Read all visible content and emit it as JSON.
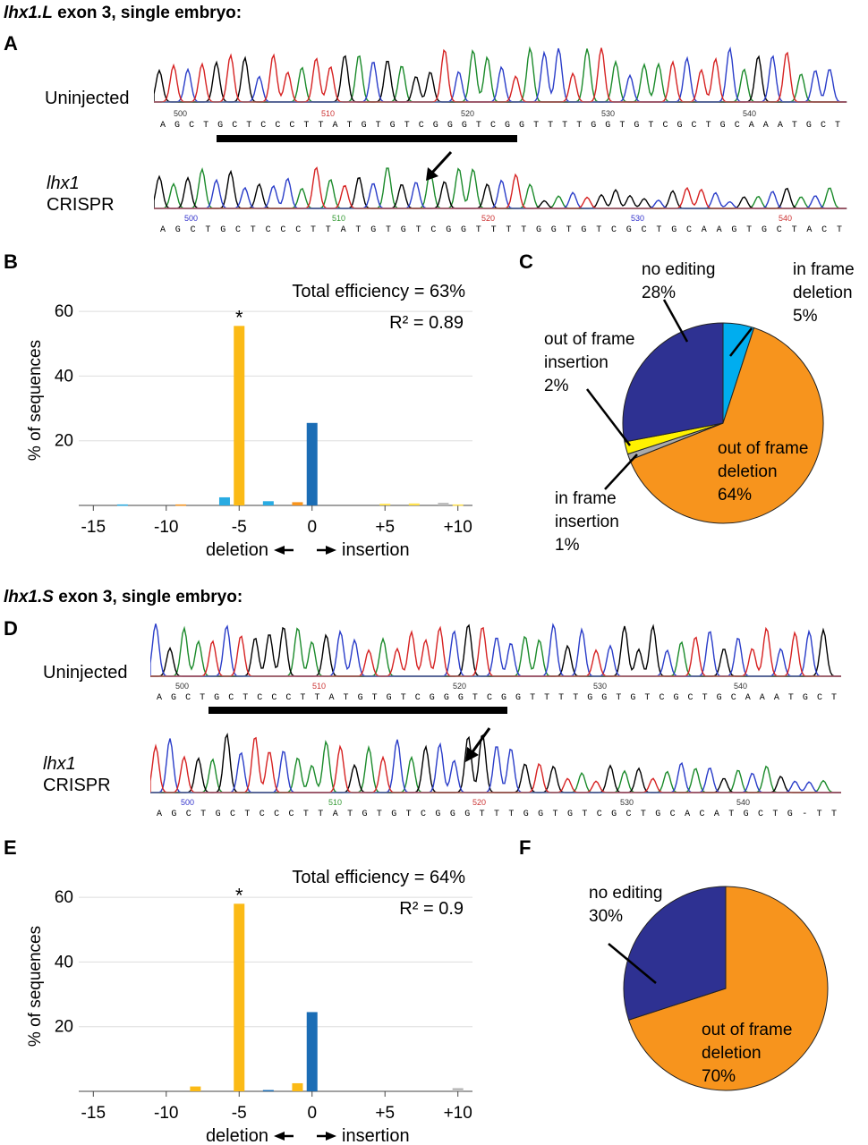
{
  "sections": [
    {
      "title_gene": "lhx1.L",
      "title_rest": " exon 3, single embryo:",
      "panel_trace": "A",
      "panel_bar": "B",
      "panel_pie": "C",
      "uninjected_label": "Uninjected",
      "crispr_label_gene": "lhx1",
      "crispr_label_rest": "CRISPR",
      "uninjected_positions": [
        "500",
        "510",
        "520",
        "530",
        "540"
      ],
      "uninjected_bases": "AGCTGCTCCCTTATGTGTCGGGTCGGTTTTGGTGTCGCTGCAAATGCT",
      "crispr_positions": [
        "500",
        "510",
        "520",
        "530",
        "540"
      ],
      "crispr_bases": "AGCTGCTCCCTTATGTGTCGGTTTTGGTGTCGCTGCAAGTGCTACT"
    },
    {
      "title_gene": "lhx1.S",
      "title_rest": " exon 3, single embryo:",
      "panel_trace": "D",
      "panel_bar": "E",
      "panel_pie": "F",
      "uninjected_label": "Uninjected",
      "crispr_label_gene": "lhx1",
      "crispr_label_rest": "CRISPR",
      "uninjected_positions": [
        "500",
        "510",
        "520",
        "530",
        "540"
      ],
      "uninjected_bases": "AGCTGCTCCCTTATGTGTCGGGTCGGTTTTGGTGTCGCTGCAAATGCT",
      "crispr_positions": [
        "500",
        "510",
        "520",
        "530",
        "540"
      ],
      "crispr_bases": "AGCTGCTCCCTTATGTGTCGGGTTTGGTGTCGCTGCACATGCTG-TT"
    }
  ],
  "chart_data": [
    {
      "type": "bar",
      "ylabel": "% of sequences",
      "xlabel_left": "deletion",
      "xlabel_right": "insertion",
      "xticks": [
        "-15",
        "-10",
        "-5",
        "0",
        "+5",
        "+10"
      ],
      "xtick_values": [
        -15,
        -10,
        -5,
        0,
        5,
        10
      ],
      "yticks": [
        20,
        40,
        60
      ],
      "xlim": [
        -16,
        11
      ],
      "ylim": [
        0,
        65
      ],
      "annotation_efficiency": "Total efficiency = 63%",
      "annotation_r2": "R² = 0.89",
      "star": "*",
      "star_x": -5,
      "bars": [
        {
          "x": -13,
          "value": 0.3,
          "color": "#29ABE2"
        },
        {
          "x": -9,
          "value": 0.3,
          "color": "#F7941D"
        },
        {
          "x": -6,
          "value": 2.5,
          "color": "#29ABE2"
        },
        {
          "x": -5,
          "value": 55.5,
          "color": "#FBBA16"
        },
        {
          "x": -3,
          "value": 1.3,
          "color": "#29ABE2"
        },
        {
          "x": -1,
          "value": 1.0,
          "color": "#F7941D"
        },
        {
          "x": 0,
          "value": 25.5,
          "color": "#1B6DB5"
        },
        {
          "x": 5,
          "value": 0.5,
          "color": "#FFE14D"
        },
        {
          "x": 7,
          "value": 0.6,
          "color": "#FFE14D"
        },
        {
          "x": 9,
          "value": 0.8,
          "color": "#BBBBBB"
        },
        {
          "x": 10,
          "value": 0.3,
          "color": "#FFE14D"
        }
      ]
    },
    {
      "type": "pie",
      "slices": [
        {
          "name": "in frame deletion",
          "lines": [
            "in frame",
            "deletion",
            "5%"
          ],
          "value": 5,
          "color": "#00ADEF"
        },
        {
          "name": "out of frame deletion",
          "lines": [
            "out of frame",
            "deletion",
            "64%"
          ],
          "value": 64,
          "color": "#F7941D"
        },
        {
          "name": "in frame insertion",
          "lines": [
            "in frame",
            "insertion",
            "1%"
          ],
          "value": 1,
          "color": "#AAAAAA"
        },
        {
          "name": "out of frame insertion",
          "lines": [
            "out of frame",
            "insertion",
            "2%"
          ],
          "value": 2,
          "color": "#FFF200"
        },
        {
          "name": "no editing",
          "lines": [
            "no editing",
            "28%"
          ],
          "value": 28,
          "color": "#2E3192"
        }
      ]
    },
    {
      "type": "bar",
      "ylabel": "% of sequences",
      "xlabel_left": "deletion",
      "xlabel_right": "insertion",
      "xticks": [
        "-15",
        "-10",
        "-5",
        "0",
        "+5",
        "+10"
      ],
      "xtick_values": [
        -15,
        -10,
        -5,
        0,
        5,
        10
      ],
      "yticks": [
        20,
        40,
        60
      ],
      "xlim": [
        -16,
        11
      ],
      "ylim": [
        0,
        65
      ],
      "annotation_efficiency": "Total efficiency = 64%",
      "annotation_r2": "R² = 0.9",
      "star": "*",
      "star_x": -5,
      "bars": [
        {
          "x": -8,
          "value": 1.5,
          "color": "#FBBA16"
        },
        {
          "x": -5,
          "value": 58.0,
          "color": "#FBBA16"
        },
        {
          "x": -3,
          "value": 0.4,
          "color": "#1B6DB5"
        },
        {
          "x": -1,
          "value": 2.5,
          "color": "#FBBA16"
        },
        {
          "x": 0,
          "value": 24.5,
          "color": "#1B6DB5"
        },
        {
          "x": 10,
          "value": 1.0,
          "color": "#BBBBBB"
        }
      ]
    },
    {
      "type": "pie",
      "slices": [
        {
          "name": "out of frame deletion",
          "lines": [
            "out of frame",
            "deletion",
            "70%"
          ],
          "value": 70,
          "color": "#F7941D"
        },
        {
          "name": "no editing",
          "lines": [
            "no editing",
            "30%"
          ],
          "value": 30,
          "color": "#2E3192"
        }
      ]
    }
  ]
}
